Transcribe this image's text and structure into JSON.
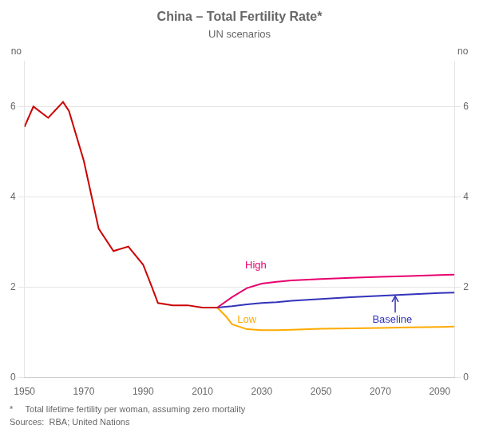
{
  "chart_data": {
    "type": "line",
    "title": "China – Total Fertility Rate*",
    "subtitle": "UN scenarios",
    "y_label": "no",
    "y2_label": "no",
    "footnotes": [
      "*     Total lifetime fertility per woman, assuming zero mortality",
      "Sources:  RBA; United Nations"
    ],
    "xlim": [
      1950,
      2095
    ],
    "xticks": [
      1950,
      1970,
      1990,
      2010,
      2030,
      2050,
      2070,
      2090
    ],
    "ylim": [
      0,
      7
    ],
    "yticks": [
      0,
      2,
      4,
      6
    ],
    "y2lim": [
      0,
      7
    ],
    "y2ticks": [
      0,
      2,
      4,
      6
    ],
    "grid": "y",
    "series": [
      {
        "color": "#cc0000",
        "x": [
          1950,
          1953,
          1958,
          1963,
          1965,
          1970,
          1975,
          1980,
          1985,
          1990,
          1993,
          1995,
          2000,
          2005,
          2010,
          2015
        ],
        "values": [
          5.55,
          6.0,
          5.75,
          6.1,
          5.9,
          4.8,
          3.3,
          2.8,
          2.9,
          2.5,
          2.0,
          1.65,
          1.6,
          1.6,
          1.55,
          1.55
        ]
      },
      {
        "color": "#e8006e",
        "x": [
          2015,
          2020,
          2025,
          2030,
          2035,
          2040,
          2050,
          2060,
          2070,
          2080,
          2090,
          2095
        ],
        "values": [
          1.55,
          1.78,
          1.98,
          2.08,
          2.12,
          2.15,
          2.18,
          2.21,
          2.23,
          2.25,
          2.27,
          2.28
        ]
      },
      {
        "color": "#3333bb",
        "x": [
          2015,
          2020,
          2025,
          2030,
          2035,
          2040,
          2050,
          2060,
          2070,
          2080,
          2090,
          2095
        ],
        "values": [
          1.55,
          1.58,
          1.62,
          1.65,
          1.67,
          1.7,
          1.74,
          1.78,
          1.81,
          1.84,
          1.87,
          1.88
        ]
      },
      {
        "color": "#ffaa00",
        "x": [
          2015,
          2018,
          2020,
          2025,
          2030,
          2035,
          2040,
          2050,
          2060,
          2070,
          2080,
          2090,
          2095
        ],
        "values": [
          1.55,
          1.35,
          1.18,
          1.07,
          1.05,
          1.05,
          1.06,
          1.08,
          1.09,
          1.1,
          1.11,
          1.12,
          1.13
        ]
      }
    ],
    "annotations": [
      {
        "text": "High",
        "x": 2028,
        "y": 2.48,
        "color": "#e8006e"
      },
      {
        "text": "Baseline",
        "x": 2074,
        "y": 1.27,
        "color": "#3333bb"
      },
      {
        "text": "Low",
        "x": 2025,
        "y": 1.27,
        "color": "#ffaa00"
      }
    ],
    "arrows": [
      {
        "x": 2075,
        "y_start": 1.44,
        "y_end": 1.8,
        "color": "#3333bb"
      }
    ]
  }
}
